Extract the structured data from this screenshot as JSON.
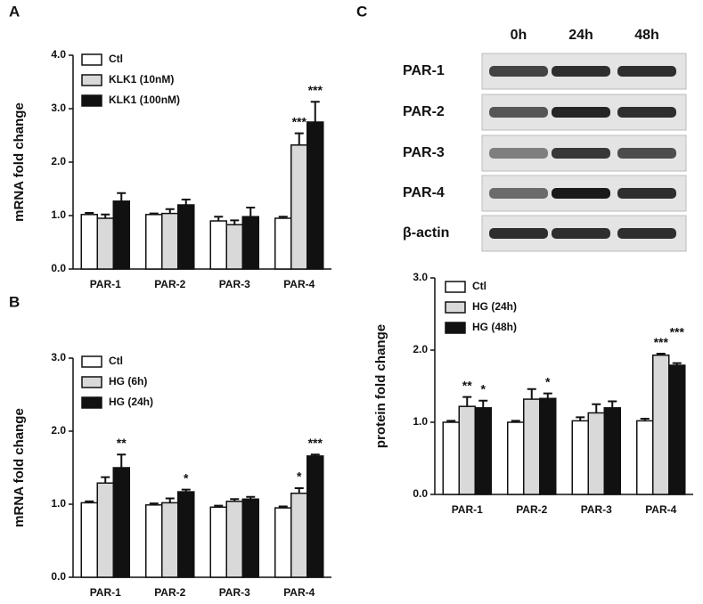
{
  "blot": {
    "panel": "C",
    "columns": [
      "0h",
      "24h",
      "48h"
    ],
    "rows": [
      "PAR-1",
      "PAR-2",
      "PAR-3",
      "PAR-4",
      "β-actin"
    ]
  },
  "chart_data": [
    {
      "type": "bar",
      "panel": "A",
      "y_label": "mRNA fold change",
      "categories": [
        "PAR-1",
        "PAR-2",
        "PAR-3",
        "PAR-4"
      ],
      "series": [
        {
          "name": "Ctl",
          "color": "#ffffff",
          "values": [
            1.02,
            1.02,
            0.9,
            0.95
          ],
          "errors": [
            0.03,
            0.02,
            0.08,
            0.03
          ],
          "annotations": [
            null,
            null,
            null,
            null
          ]
        },
        {
          "name": "KLK1 (10nM)",
          "color": "#d9d9d9",
          "values": [
            0.95,
            1.04,
            0.83,
            2.32
          ],
          "errors": [
            0.07,
            0.08,
            0.08,
            0.22
          ],
          "annotations": [
            null,
            null,
            null,
            "***"
          ]
        },
        {
          "name": "KLK1 (100nM)",
          "color": "#111111",
          "values": [
            1.27,
            1.2,
            0.98,
            2.75
          ],
          "errors": [
            0.15,
            0.1,
            0.17,
            0.38
          ],
          "annotations": [
            null,
            null,
            null,
            "***"
          ]
        }
      ],
      "ylim": [
        0,
        4
      ],
      "yticks": [
        {
          "value": 0,
          "label": "0.0"
        },
        {
          "value": 1,
          "label": "1.0"
        },
        {
          "value": 2,
          "label": "2.0"
        },
        {
          "value": 3,
          "label": "3.0"
        },
        {
          "value": 4,
          "label": "4.0"
        }
      ]
    },
    {
      "type": "bar",
      "panel": "B",
      "y_label": "mRNA fold change",
      "categories": [
        "PAR-1",
        "PAR-2",
        "PAR-3",
        "PAR-4"
      ],
      "series": [
        {
          "name": "Ctl",
          "color": "#ffffff",
          "values": [
            1.02,
            0.99,
            0.96,
            0.95
          ],
          "errors": [
            0.02,
            0.02,
            0.02,
            0.02
          ],
          "annotations": [
            null,
            null,
            null,
            null
          ]
        },
        {
          "name": "HG (6h)",
          "color": "#d9d9d9",
          "values": [
            1.29,
            1.02,
            1.04,
            1.15
          ],
          "errors": [
            0.08,
            0.06,
            0.03,
            0.07
          ],
          "annotations": [
            null,
            null,
            null,
            "*"
          ]
        },
        {
          "name": "HG (24h)",
          "color": "#111111",
          "values": [
            1.5,
            1.17,
            1.07,
            1.66
          ],
          "errors": [
            0.18,
            0.03,
            0.03,
            0.02
          ],
          "annotations": [
            "**",
            "*",
            null,
            "***"
          ]
        }
      ],
      "ylim": [
        0,
        3
      ],
      "yticks": [
        {
          "value": 0,
          "label": "0.0"
        },
        {
          "value": 1,
          "label": "1.0"
        },
        {
          "value": 2,
          "label": "2.0"
        },
        {
          "value": 3,
          "label": "3.0"
        }
      ]
    },
    {
      "type": "bar",
      "y_label": "protein fold change",
      "categories": [
        "PAR-1",
        "PAR-2",
        "PAR-3",
        "PAR-4"
      ],
      "series": [
        {
          "name": "Ctl",
          "color": "#ffffff",
          "values": [
            1.0,
            1.0,
            1.02,
            1.02
          ],
          "errors": [
            0.02,
            0.02,
            0.05,
            0.03
          ],
          "annotations": [
            null,
            null,
            null,
            null
          ]
        },
        {
          "name": "HG (24h)",
          "color": "#d9d9d9",
          "values": [
            1.22,
            1.32,
            1.13,
            1.93
          ],
          "errors": [
            0.13,
            0.14,
            0.12,
            0.02
          ],
          "annotations": [
            "**",
            null,
            null,
            "***"
          ]
        },
        {
          "name": "HG (48h)",
          "color": "#111111",
          "values": [
            1.2,
            1.33,
            1.2,
            1.79
          ],
          "errors": [
            0.1,
            0.07,
            0.09,
            0.03
          ],
          "annotations": [
            "*",
            "*",
            null,
            "***"
          ]
        }
      ],
      "ylim": [
        0,
        3
      ],
      "yticks": [
        {
          "value": 0,
          "label": "0.0"
        },
        {
          "value": 1,
          "label": "1.0"
        },
        {
          "value": 2,
          "label": "2.0"
        },
        {
          "value": 3,
          "label": "3.0"
        }
      ]
    }
  ]
}
